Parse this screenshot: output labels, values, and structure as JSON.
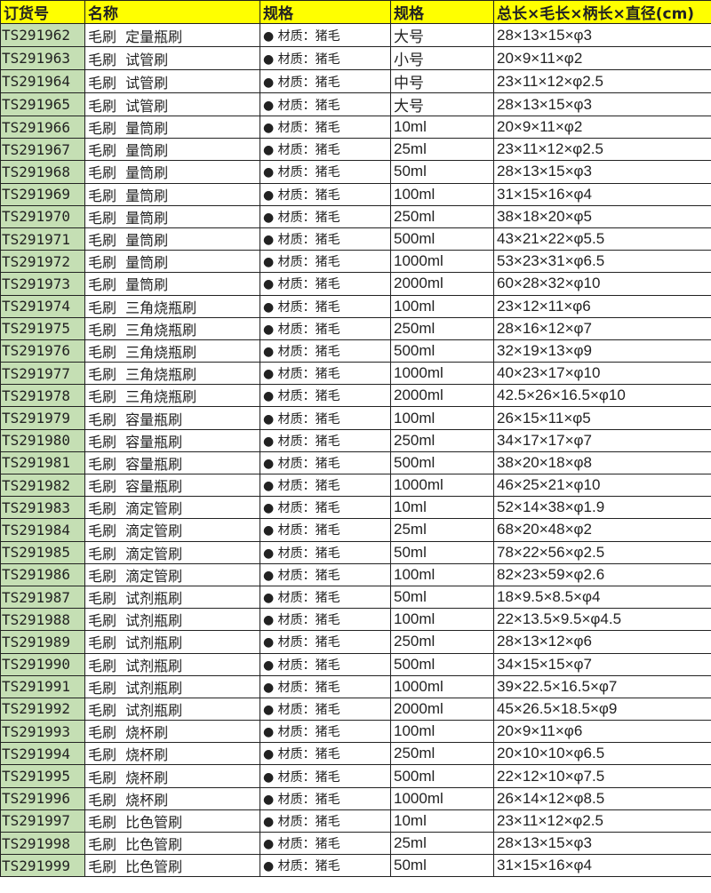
{
  "colors": {
    "header_bg": "#ffff00",
    "id_column_bg": "#c5dfb4"
  },
  "headers": [
    "订货号",
    "名称",
    "规格",
    "规格",
    "总长×毛长×柄长×直径(cm)"
  ],
  "rows": [
    [
      "TS291962",
      "毛刷  定量瓶刷",
      "● 材质：猪毛",
      "大号",
      "28×13×15×φ3"
    ],
    [
      "TS291963",
      "毛刷  试管刷",
      "● 材质：猪毛",
      "小号",
      "20×9×11×φ2"
    ],
    [
      "TS291964",
      "毛刷  试管刷",
      "● 材质：猪毛",
      "中号",
      "23×11×12×φ2.5"
    ],
    [
      "TS291965",
      "毛刷  试管刷",
      "● 材质：猪毛",
      "大号",
      "28×13×15×φ3"
    ],
    [
      "TS291966",
      "毛刷  量筒刷",
      "● 材质：猪毛",
      "10ml",
      "20×9×11×φ2"
    ],
    [
      "TS291967",
      "毛刷  量筒刷",
      "● 材质：猪毛",
      "25ml",
      "23×11×12×φ2.5"
    ],
    [
      "TS291968",
      "毛刷  量筒刷",
      "● 材质：猪毛",
      "50ml",
      "28×13×15×φ3"
    ],
    [
      "TS291969",
      "毛刷  量筒刷",
      "● 材质：猪毛",
      "100ml",
      "31×15×16×φ4"
    ],
    [
      "TS291970",
      "毛刷  量筒刷",
      "● 材质：猪毛",
      "250ml",
      "38×18×20×φ5"
    ],
    [
      "TS291971",
      "毛刷  量筒刷",
      "● 材质：猪毛",
      "500ml",
      "43×21×22×φ5.5"
    ],
    [
      "TS291972",
      "毛刷  量筒刷",
      "● 材质：猪毛",
      "1000ml",
      "53×23×31×φ6.5"
    ],
    [
      "TS291973",
      "毛刷  量筒刷",
      "● 材质：猪毛",
      "2000ml",
      "60×28×32×φ10"
    ],
    [
      "TS291974",
      "毛刷  三角烧瓶刷",
      "● 材质：猪毛",
      "100ml",
      "23×12×11×φ6"
    ],
    [
      "TS291975",
      "毛刷  三角烧瓶刷",
      "● 材质：猪毛",
      "250ml",
      "28×16×12×φ7"
    ],
    [
      "TS291976",
      "毛刷  三角烧瓶刷",
      "● 材质：猪毛",
      "500ml",
      "32×19×13×φ9"
    ],
    [
      "TS291977",
      "毛刷  三角烧瓶刷",
      "● 材质：猪毛",
      "1000ml",
      "40×23×17×φ10"
    ],
    [
      "TS291978",
      "毛刷  三角烧瓶刷",
      "● 材质：猪毛",
      "2000ml",
      "42.5×26×16.5×φ10"
    ],
    [
      "TS291979",
      "毛刷  容量瓶刷",
      "● 材质：猪毛",
      "100ml",
      "26×15×11×φ5"
    ],
    [
      "TS291980",
      "毛刷  容量瓶刷",
      "● 材质：猪毛",
      "250ml",
      "34×17×17×φ7"
    ],
    [
      "TS291981",
      "毛刷  容量瓶刷",
      "● 材质：猪毛",
      "500ml",
      "38×20×18×φ8"
    ],
    [
      "TS291982",
      "毛刷  容量瓶刷",
      "● 材质：猪毛",
      "1000ml",
      "46×25×21×φ10"
    ],
    [
      "TS291983",
      "毛刷  滴定管刷",
      "● 材质：猪毛",
      "10ml",
      "52×14×38×φ1.9"
    ],
    [
      "TS291984",
      "毛刷  滴定管刷",
      "● 材质：猪毛",
      "25ml",
      "68×20×48×φ2"
    ],
    [
      "TS291985",
      "毛刷  滴定管刷",
      "● 材质：猪毛",
      "50ml",
      "78×22×56×φ2.5"
    ],
    [
      "TS291986",
      "毛刷  滴定管刷",
      "● 材质：猪毛",
      "100ml",
      "82×23×59×φ2.6"
    ],
    [
      "TS291987",
      "毛刷  试剂瓶刷",
      "● 材质：猪毛",
      "50ml",
      "18×9.5×8.5×φ4"
    ],
    [
      "TS291988",
      "毛刷  试剂瓶刷",
      "● 材质：猪毛",
      "100ml",
      "22×13.5×9.5×φ4.5"
    ],
    [
      "TS291989",
      "毛刷  试剂瓶刷",
      "● 材质：猪毛",
      "250ml",
      "28×13×12×φ6"
    ],
    [
      "TS291990",
      "毛刷  试剂瓶刷",
      "● 材质：猪毛",
      "500ml",
      "34×15×15×φ7"
    ],
    [
      "TS291991",
      "毛刷  试剂瓶刷",
      "● 材质：猪毛",
      "1000ml",
      "39×22.5×16.5×φ7"
    ],
    [
      "TS291992",
      "毛刷  试剂瓶刷",
      "● 材质：猪毛",
      "2000ml",
      "45×26.5×18.5×φ9"
    ],
    [
      "TS291993",
      "毛刷  烧杯刷",
      "● 材质：猪毛",
      "100ml",
      "20×9×11×φ6"
    ],
    [
      "TS291994",
      "毛刷  烧杯刷",
      "● 材质：猪毛",
      "250ml",
      "20×10×10×φ6.5"
    ],
    [
      "TS291995",
      "毛刷  烧杯刷",
      "● 材质：猪毛",
      "500ml",
      "22×12×10×φ7.5"
    ],
    [
      "TS291996",
      "毛刷  烧杯刷",
      "● 材质：猪毛",
      "1000ml",
      "26×14×12×φ8.5"
    ],
    [
      "TS291997",
      "毛刷  比色管刷",
      "● 材质：猪毛",
      "10ml",
      "23×11×12×φ2.5"
    ],
    [
      "TS291998",
      "毛刷  比色管刷",
      "● 材质：猪毛",
      "25ml",
      "28×13×15×φ3"
    ],
    [
      "TS291999",
      "毛刷  比色管刷",
      "● 材质：猪毛",
      "50ml",
      "31×15×16×φ4"
    ]
  ]
}
